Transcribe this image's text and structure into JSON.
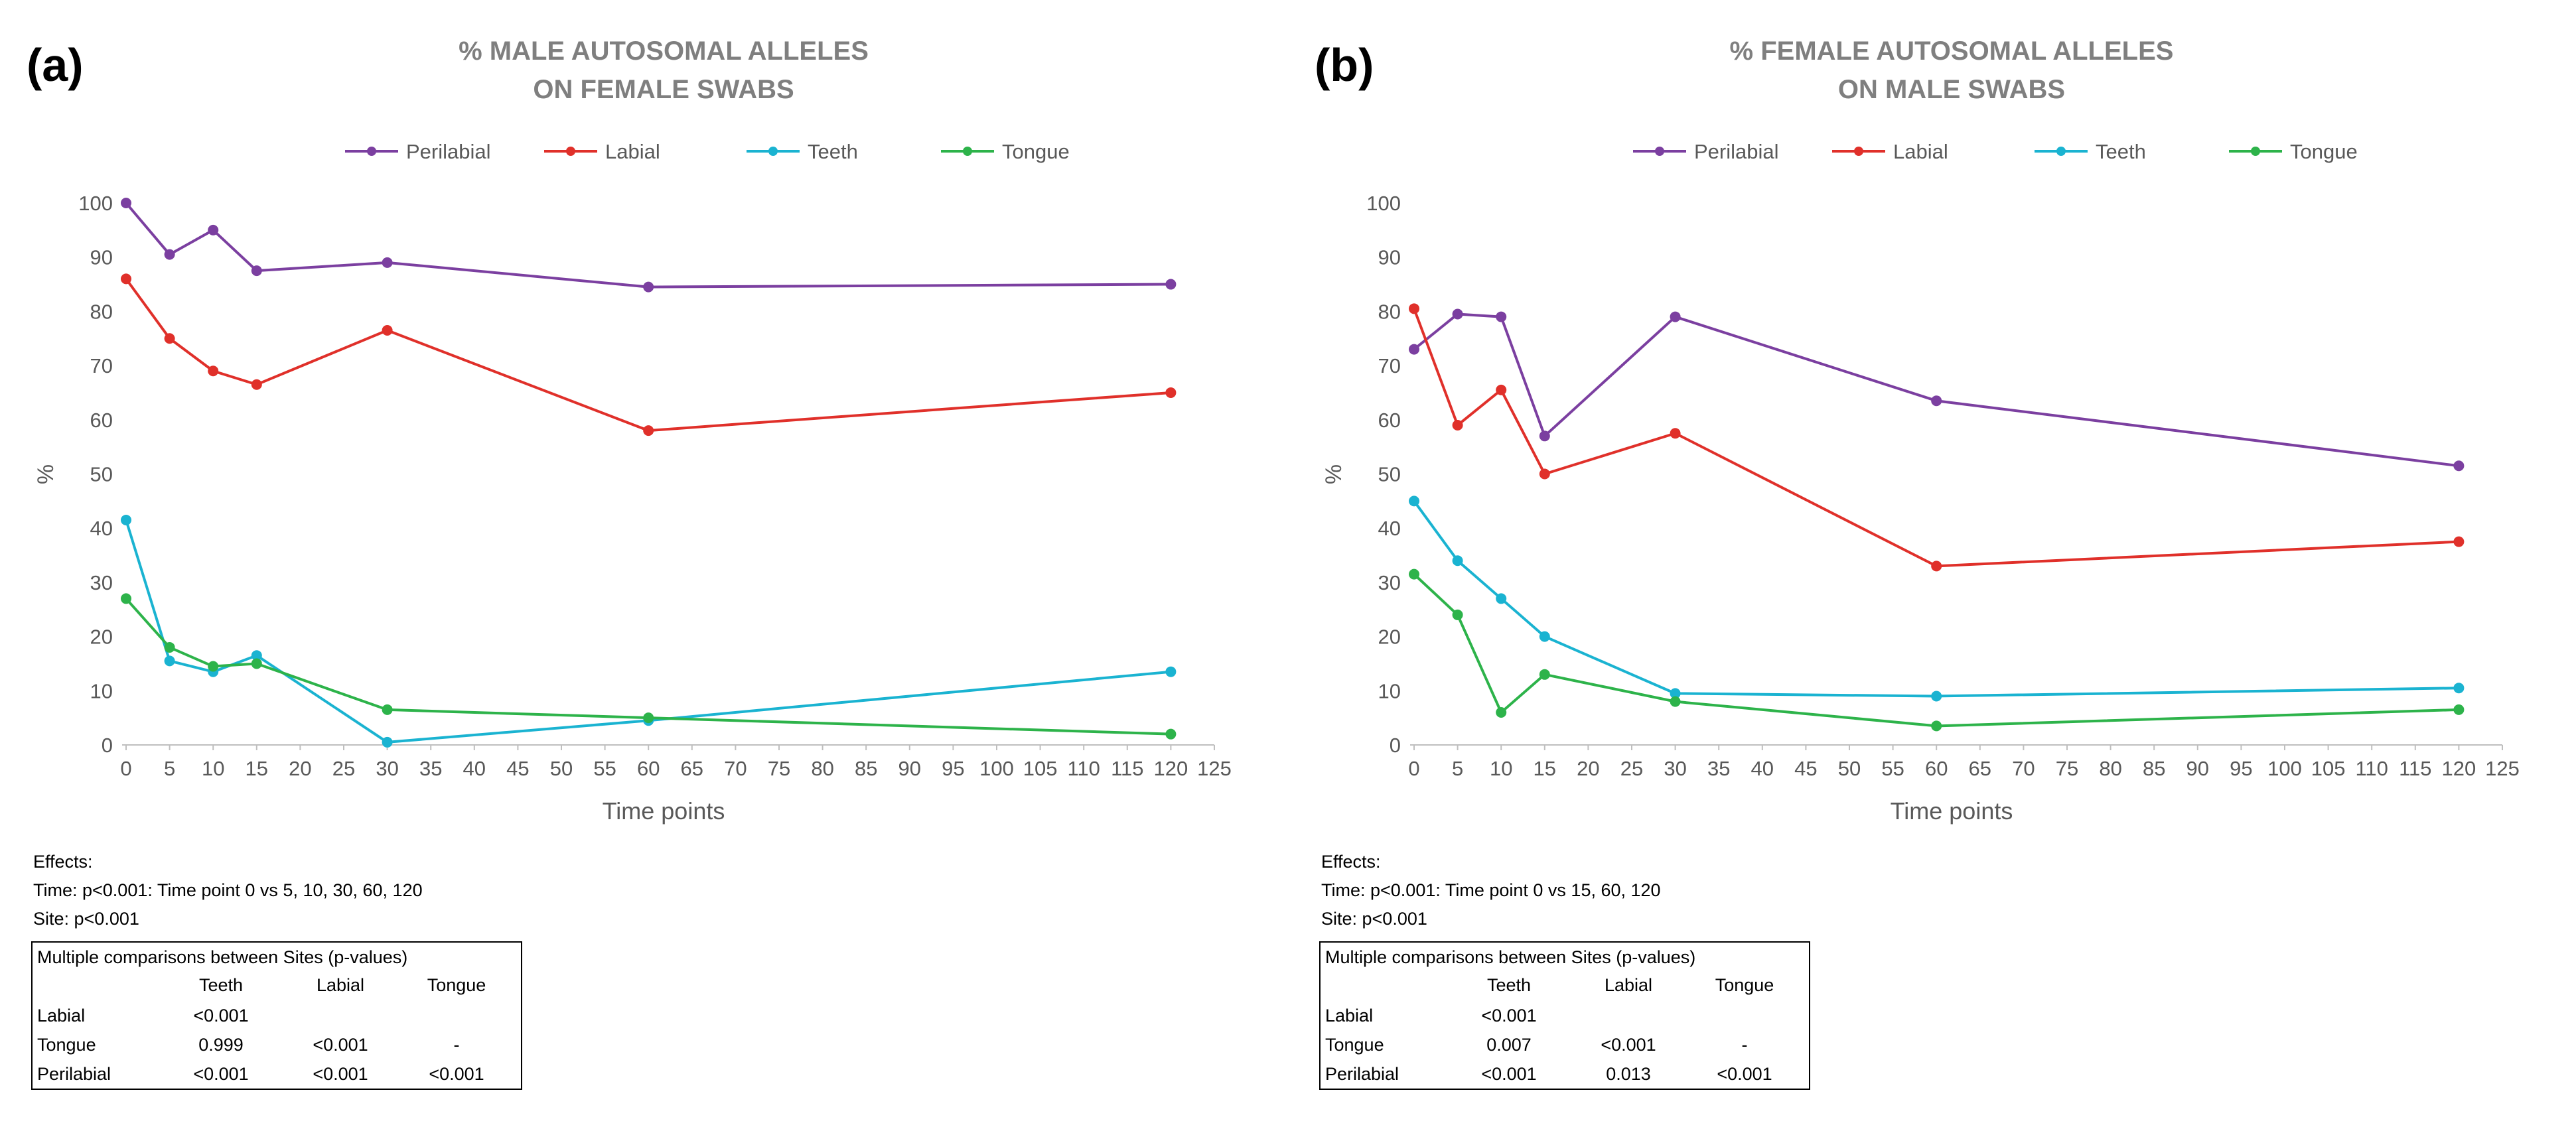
{
  "chart_data": [
    {
      "type": "line",
      "panel_label": "(a)",
      "title_lines": [
        "% MALE AUTOSOMAL ALLELES",
        "ON FEMALE SWABS"
      ],
      "xlabel": "Time points",
      "ylabel": "%",
      "xlim": [
        0,
        125
      ],
      "ylim": [
        0,
        100
      ],
      "xticks": [
        0,
        5,
        10,
        15,
        20,
        25,
        30,
        35,
        40,
        45,
        50,
        55,
        60,
        65,
        70,
        75,
        80,
        85,
        90,
        95,
        100,
        105,
        110,
        115,
        120,
        125
      ],
      "yticks": [
        0,
        10,
        20,
        30,
        40,
        50,
        60,
        70,
        80,
        90,
        100
      ],
      "legend_position": "top",
      "x": [
        0,
        5,
        10,
        15,
        30,
        60,
        120
      ],
      "series": [
        {
          "name": "Perilabial",
          "color": "#7b3fa0",
          "values": [
            100,
            90.5,
            95,
            87.5,
            89,
            84.5,
            85
          ]
        },
        {
          "name": "Labial",
          "color": "#e0302a",
          "values": [
            86,
            75,
            69,
            66.5,
            76.5,
            58,
            65
          ]
        },
        {
          "name": "Teeth",
          "color": "#1ab3d1",
          "values": [
            41.5,
            15.5,
            13.5,
            16.5,
            0.5,
            4.5,
            13.5
          ]
        },
        {
          "name": "Tongue",
          "color": "#2db34a",
          "values": [
            27,
            18,
            14.5,
            15,
            6.5,
            5,
            2
          ]
        }
      ],
      "effects": {
        "heading": "Effects:",
        "time": "Time: p<0.001: Time point 0 vs 5, 10, 30, 60, 120",
        "site": "Site: p<0.001"
      },
      "comparison_table": {
        "caption": "Multiple comparisons between Sites (p-values)",
        "columns": [
          "",
          "Teeth",
          "Labial",
          "Tongue"
        ],
        "rows": [
          [
            "Labial",
            "<0.001",
            "",
            ""
          ],
          [
            "Tongue",
            "0.999",
            "<0.001",
            "-"
          ],
          [
            "Perilabial",
            "<0.001",
            "<0.001",
            "<0.001"
          ]
        ]
      }
    },
    {
      "type": "line",
      "panel_label": "(b)",
      "title_lines": [
        "% FEMALE AUTOSOMAL ALLELES",
        "ON MALE SWABS"
      ],
      "xlabel": "Time points",
      "ylabel": "%",
      "xlim": [
        0,
        125
      ],
      "ylim": [
        0,
        100
      ],
      "xticks": [
        0,
        5,
        10,
        15,
        20,
        25,
        30,
        35,
        40,
        45,
        50,
        55,
        60,
        65,
        70,
        75,
        80,
        85,
        90,
        95,
        100,
        105,
        110,
        115,
        120,
        125
      ],
      "yticks": [
        0,
        10,
        20,
        30,
        40,
        50,
        60,
        70,
        80,
        90,
        100
      ],
      "legend_position": "top",
      "x": [
        0,
        5,
        10,
        15,
        30,
        60,
        120
      ],
      "series": [
        {
          "name": "Perilabial",
          "color": "#7b3fa0",
          "values": [
            73,
            79.5,
            79,
            57,
            79,
            63.5,
            51.5
          ]
        },
        {
          "name": "Labial",
          "color": "#e0302a",
          "values": [
            80.5,
            59,
            65.5,
            50,
            57.5,
            33,
            37.5
          ]
        },
        {
          "name": "Teeth",
          "color": "#1ab3d1",
          "values": [
            45,
            34,
            27,
            20,
            9.5,
            9,
            10.5
          ]
        },
        {
          "name": "Tongue",
          "color": "#2db34a",
          "values": [
            31.5,
            24,
            6,
            13,
            8,
            3.5,
            6.5
          ]
        }
      ],
      "effects": {
        "heading": "Effects:",
        "time": "Time: p<0.001: Time point 0 vs 15, 60, 120",
        "site": "Site: p<0.001"
      },
      "comparison_table": {
        "caption": "Multiple comparisons between Sites (p-values)",
        "columns": [
          "",
          "Teeth",
          "Labial",
          "Tongue"
        ],
        "rows": [
          [
            "Labial",
            "<0.001",
            "",
            ""
          ],
          [
            "Tongue",
            "0.007",
            "<0.001",
            "-"
          ],
          [
            "Perilabial",
            "<0.001",
            "0.013",
            "<0.001"
          ]
        ]
      }
    }
  ]
}
